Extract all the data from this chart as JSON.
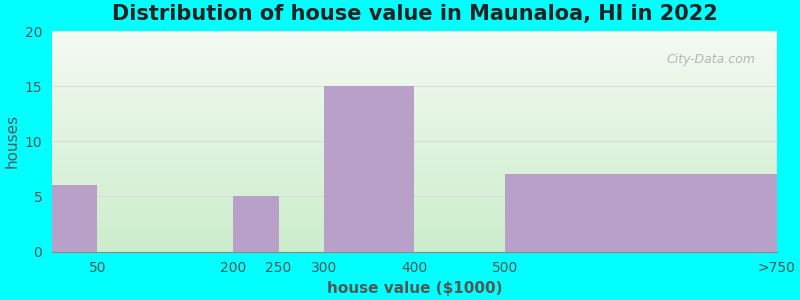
{
  "title": "Distribution of house value in Maunaloa, HI in 2022",
  "xlabel": "house value ($1000)",
  "ylabel": "houses",
  "bar_left_edges": [
    0,
    50,
    200,
    250,
    300,
    400,
    500
  ],
  "bar_right_edges": [
    50,
    200,
    250,
    300,
    400,
    500,
    800
  ],
  "bar_values": [
    6,
    0,
    5,
    0,
    15,
    0,
    7
  ],
  "xtick_positions": [
    50,
    200,
    250,
    300,
    400,
    500,
    800
  ],
  "xtick_labels": [
    "50",
    "200",
    "250",
    "300",
    "400",
    "500",
    ">750"
  ],
  "bar_color": "#b8a0c8",
  "ylim": [
    0,
    20
  ],
  "xlim": [
    0,
    800
  ],
  "yticks": [
    0,
    5,
    10,
    15,
    20
  ],
  "background_color": "#00FFFF",
  "plot_bg_top_color": "#f0f5ee",
  "plot_bg_bottom_color": "#c8e8cc",
  "grid_color": "#dddddd",
  "title_fontsize": 15,
  "axis_label_fontsize": 11,
  "tick_fontsize": 10,
  "watermark_text": "City-Data.com"
}
